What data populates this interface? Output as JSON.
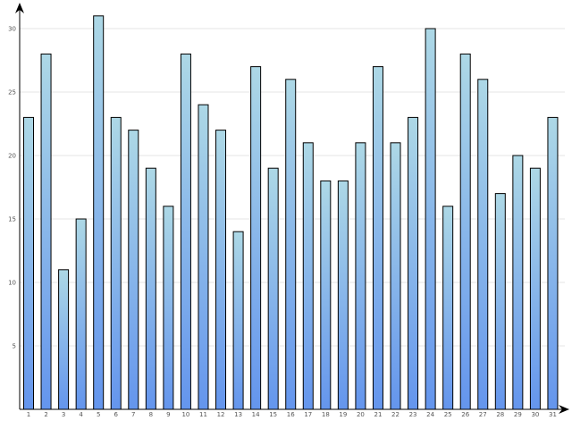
{
  "chart_data": {
    "type": "bar",
    "title": "",
    "xlabel": "",
    "ylabel": "",
    "categories": [
      "1",
      "2",
      "3",
      "4",
      "5",
      "6",
      "7",
      "8",
      "9",
      "10",
      "11",
      "12",
      "13",
      "14",
      "15",
      "16",
      "17",
      "18",
      "19",
      "20",
      "21",
      "22",
      "23",
      "24",
      "25",
      "26",
      "27",
      "28",
      "29",
      "30",
      "31"
    ],
    "values": [
      23,
      28,
      11,
      15,
      31,
      23,
      22,
      19,
      16,
      28,
      24,
      22,
      14,
      27,
      19,
      26,
      21,
      18,
      18,
      21,
      27,
      21,
      23,
      30,
      16,
      28,
      26,
      17,
      20,
      19,
      23
    ],
    "ylim": [
      0,
      32
    ],
    "yticks": [
      5,
      10,
      15,
      20,
      25,
      30
    ],
    "ytick_labels": [
      "5",
      "10",
      "15",
      "20",
      "25",
      "30"
    ],
    "grid": "horizontal",
    "legend": "none",
    "bar_gradient": {
      "top": "#add8e6",
      "bottom": "#6495ed"
    }
  }
}
